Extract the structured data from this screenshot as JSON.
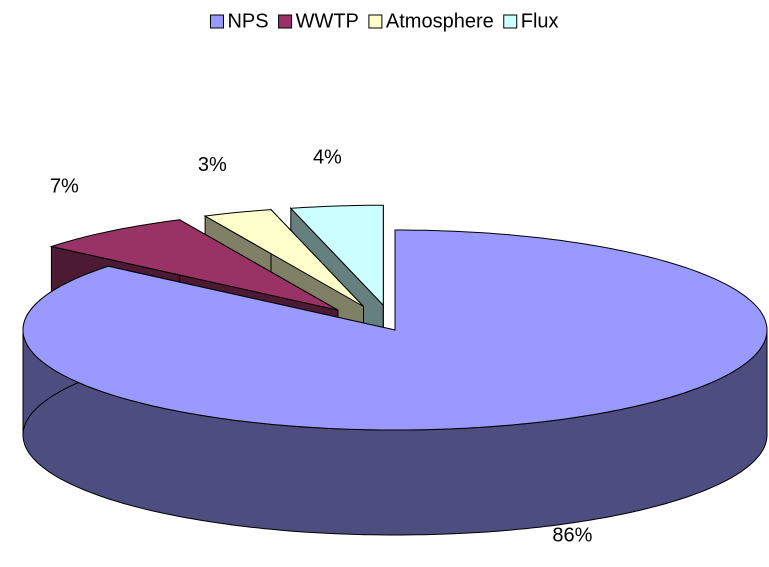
{
  "chart_data": {
    "type": "pie3d",
    "categories": [
      "NPS",
      "WWTP",
      "Atmosphere",
      "Flux"
    ],
    "values": [
      86,
      7,
      3,
      4
    ],
    "value_labels": [
      "86%",
      "7%",
      "3%",
      "4%"
    ],
    "colors": [
      "#9999ff",
      "#993366",
      "#ffffcc",
      "#ccffff"
    ],
    "legend": "top"
  }
}
